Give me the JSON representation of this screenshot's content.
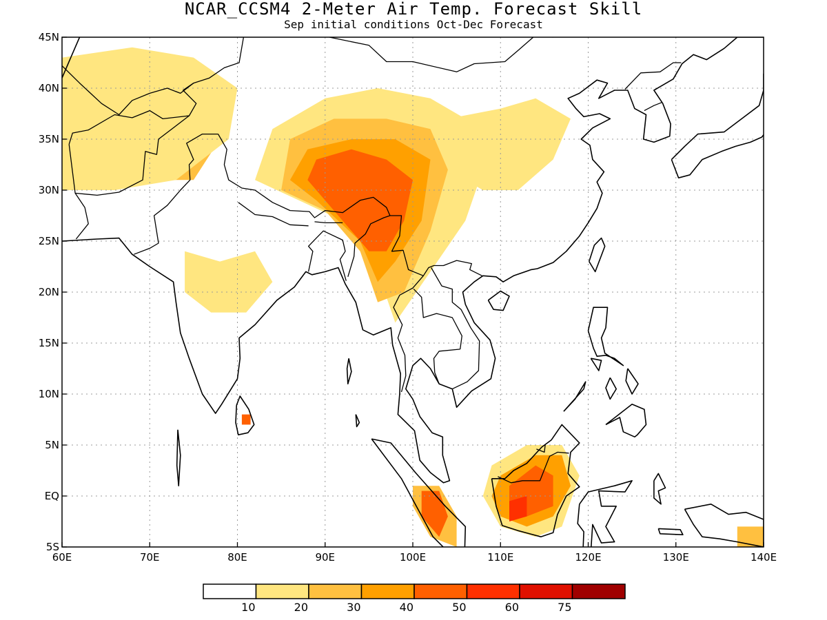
{
  "title": "NCAR_CCSM4 2-Meter Air Temp. Forecast Skill",
  "subtitle": "Sep initial conditions  Oct-Dec Forecast",
  "map": {
    "lon_range": [
      60,
      140
    ],
    "lat_range": [
      -5,
      45
    ],
    "lon_labels": [
      "60E",
      "70E",
      "80E",
      "90E",
      "100E",
      "110E",
      "120E",
      "130E",
      "140E"
    ],
    "lat_labels": [
      "45N",
      "40N",
      "35N",
      "30N",
      "25N",
      "20N",
      "15N",
      "10N",
      "5N",
      "EQ",
      "5S"
    ],
    "gridlines": true
  },
  "colorbar": {
    "colors": [
      "#ffffff",
      "#ffe680",
      "#ffc040",
      "#ffa000",
      "#ff6000",
      "#ff3000",
      "#e01000",
      "#a00000"
    ],
    "labels": [
      "10",
      "20",
      "30",
      "40",
      "50",
      "60",
      "75"
    ]
  },
  "skill_regions": [
    {
      "name": "tibet-plateau",
      "level": 1,
      "points": [
        [
          84,
          36
        ],
        [
          90,
          39
        ],
        [
          96,
          40
        ],
        [
          102,
          39
        ],
        [
          106,
          37
        ],
        [
          108,
          32
        ],
        [
          106,
          27
        ],
        [
          102,
          22
        ],
        [
          98,
          17
        ],
        [
          96,
          22
        ],
        [
          92,
          27
        ],
        [
          87,
          29
        ],
        [
          82,
          31
        ]
      ]
    },
    {
      "name": "tibet-plateau",
      "level": 2,
      "points": [
        [
          86,
          35
        ],
        [
          91,
          37
        ],
        [
          97,
          37
        ],
        [
          102,
          36
        ],
        [
          104,
          32
        ],
        [
          102,
          26
        ],
        [
          99,
          20
        ],
        [
          96,
          19
        ],
        [
          94,
          24
        ],
        [
          90,
          28
        ],
        [
          85,
          30
        ]
      ]
    },
    {
      "name": "tibet-plateau",
      "level": 3,
      "points": [
        [
          88,
          34
        ],
        [
          93,
          35
        ],
        [
          98,
          35
        ],
        [
          102,
          33
        ],
        [
          101,
          27
        ],
        [
          98,
          23
        ],
        [
          96,
          21
        ],
        [
          94,
          25
        ],
        [
          89,
          29
        ],
        [
          86,
          31
        ]
      ]
    },
    {
      "name": "tibet-plateau",
      "level": 4,
      "points": [
        [
          89,
          33
        ],
        [
          93,
          34
        ],
        [
          97,
          33
        ],
        [
          100,
          31
        ],
        [
          99,
          27
        ],
        [
          97,
          24
        ],
        [
          95,
          24
        ],
        [
          91,
          28
        ],
        [
          88,
          31
        ]
      ]
    },
    {
      "name": "northwest-pakistan",
      "level": 2,
      "points": [
        [
          67,
          41
        ],
        [
          72,
          41
        ],
        [
          75,
          38
        ],
        [
          78,
          35
        ],
        [
          75,
          31
        ],
        [
          71,
          31
        ],
        [
          68,
          33
        ],
        [
          66,
          36
        ]
      ]
    },
    {
      "name": "northwest-pakistan",
      "level": 3,
      "points": [
        [
          69,
          40
        ],
        [
          73,
          40
        ],
        [
          75,
          36
        ],
        [
          72,
          33
        ],
        [
          69,
          34
        ]
      ]
    },
    {
      "name": "northwest-pakistan",
      "level": 4,
      "points": [
        [
          70,
          40
        ],
        [
          73,
          39.5
        ],
        [
          72,
          38
        ]
      ]
    },
    {
      "name": "iran-afghanistan",
      "level": 1,
      "points": [
        [
          60,
          43
        ],
        [
          68,
          44
        ],
        [
          75,
          43
        ],
        [
          80,
          40
        ],
        [
          79,
          35
        ],
        [
          73,
          31
        ],
        [
          66,
          30
        ],
        [
          60,
          30
        ]
      ]
    },
    {
      "name": "north-china",
      "level": 1,
      "points": [
        [
          104,
          37
        ],
        [
          110,
          38
        ],
        [
          114,
          39
        ],
        [
          118,
          37
        ],
        [
          116,
          33
        ],
        [
          112,
          30
        ],
        [
          108,
          30
        ],
        [
          104,
          32
        ]
      ]
    },
    {
      "name": "central-india",
      "level": 1,
      "points": [
        [
          74,
          24
        ],
        [
          78,
          23
        ],
        [
          82,
          24
        ],
        [
          84,
          21
        ],
        [
          81,
          18
        ],
        [
          77,
          18
        ],
        [
          74,
          20
        ]
      ]
    },
    {
      "name": "borneo",
      "level": 1,
      "points": [
        [
          109,
          3
        ],
        [
          113,
          5
        ],
        [
          117,
          5
        ],
        [
          119,
          2
        ],
        [
          117,
          -3
        ],
        [
          114,
          -4
        ],
        [
          110,
          -3
        ],
        [
          108,
          0
        ]
      ]
    },
    {
      "name": "borneo",
      "level": 3,
      "points": [
        [
          110,
          2
        ],
        [
          114,
          4
        ],
        [
          117,
          4
        ],
        [
          118,
          1
        ],
        [
          116,
          -2
        ],
        [
          113,
          -3
        ],
        [
          110,
          -2
        ],
        [
          109,
          0
        ]
      ]
    },
    {
      "name": "borneo",
      "level": 4,
      "points": [
        [
          111,
          1
        ],
        [
          114,
          3
        ],
        [
          116,
          2
        ],
        [
          116,
          -1
        ],
        [
          113,
          -2
        ],
        [
          111,
          -2
        ]
      ]
    },
    {
      "name": "borneo",
      "level": 5,
      "points": [
        [
          111,
          -0.5
        ],
        [
          113,
          0
        ],
        [
          113,
          -2
        ],
        [
          111,
          -2.5
        ]
      ]
    },
    {
      "name": "sumatra",
      "level": 2,
      "points": [
        [
          100,
          1
        ],
        [
          103,
          1
        ],
        [
          105,
          -2
        ],
        [
          105,
          -5
        ],
        [
          102,
          -4
        ],
        [
          100,
          -1
        ]
      ]
    },
    {
      "name": "sumatra",
      "level": 4,
      "points": [
        [
          101,
          0.5
        ],
        [
          103,
          0.5
        ],
        [
          104,
          -2
        ],
        [
          103,
          -4
        ],
        [
          101,
          -2
        ]
      ]
    },
    {
      "name": "sri-lanka",
      "level": 4,
      "points": [
        [
          80.5,
          8
        ],
        [
          81.5,
          8
        ],
        [
          81.5,
          7
        ],
        [
          80.5,
          7
        ]
      ]
    },
    {
      "name": "new-guinea",
      "level": 2,
      "points": [
        [
          137,
          -3
        ],
        [
          140,
          -3
        ],
        [
          140,
          -5
        ],
        [
          137,
          -5
        ]
      ]
    }
  ]
}
